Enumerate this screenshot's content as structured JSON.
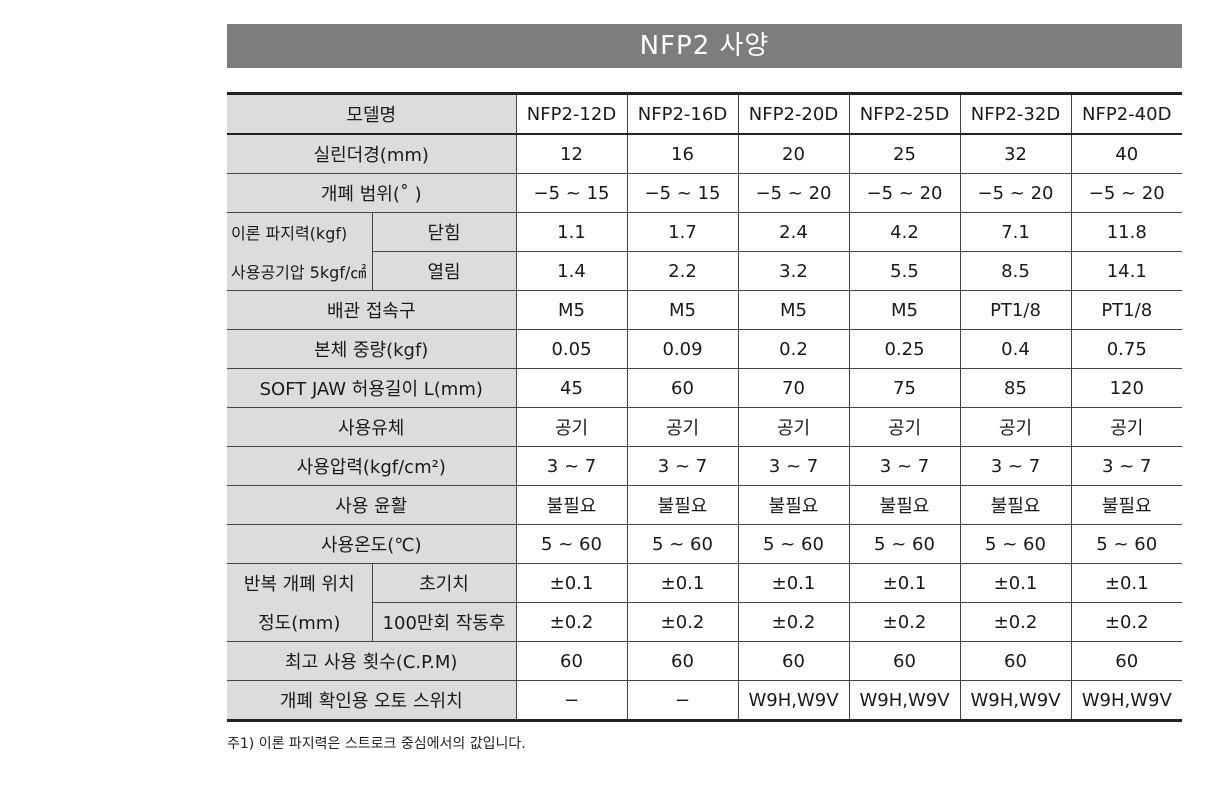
{
  "title": "NFP2 사양",
  "models": [
    "NFP2-12D",
    "NFP2-16D",
    "NFP2-20D",
    "NFP2-25D",
    "NFP2-32D",
    "NFP2-40D"
  ],
  "header_label": "모델명",
  "rows": {
    "bore": {
      "label": "실린더경(mm)",
      "values": [
        "12",
        "16",
        "20",
        "25",
        "32",
        "40"
      ]
    },
    "angle": {
      "label": "개폐 범위(˚ )",
      "values": [
        "−5 ~ 15",
        "−5 ~ 15",
        "−5 ~ 20",
        "−5 ~ 20",
        "−5 ~ 20",
        "−5 ~ 20"
      ]
    },
    "force_label_1": "이론 파지력(kgf)",
    "force_label_2": "사용공기압 5kgf/㎠",
    "close": {
      "label": "닫힘",
      "values": [
        "1.1",
        "1.7",
        "2.4",
        "4.2",
        "7.1",
        "11.8"
      ]
    },
    "open": {
      "label": "열림",
      "values": [
        "1.4",
        "2.2",
        "3.2",
        "5.5",
        "8.5",
        "14.1"
      ]
    },
    "port": {
      "label": "배관 접속구",
      "values": [
        "M5",
        "M5",
        "M5",
        "M5",
        "PT1/8",
        "PT1/8"
      ]
    },
    "weight": {
      "label": "본체 중량(kgf)",
      "values": [
        "0.05",
        "0.09",
        "0.2",
        "0.25",
        "0.4",
        "0.75"
      ]
    },
    "jaw": {
      "label": "SOFT JAW 허용길이 L(mm)",
      "values": [
        "45",
        "60",
        "70",
        "75",
        "85",
        "120"
      ]
    },
    "fluid": {
      "label": "사용유체",
      "values": [
        "공기",
        "공기",
        "공기",
        "공기",
        "공기",
        "공기"
      ]
    },
    "pressure": {
      "label": "사용압력(kgf/cm²)",
      "values": [
        "3 ~ 7",
        "3 ~ 7",
        "3 ~ 7",
        "3 ~ 7",
        "3 ~ 7",
        "3 ~ 7"
      ]
    },
    "lube": {
      "label": "사용 윤활",
      "values": [
        "불필요",
        "불필요",
        "불필요",
        "불필요",
        "불필요",
        "불필요"
      ]
    },
    "temp": {
      "label": "사용온도(℃)",
      "values": [
        "5 ~ 60",
        "5 ~ 60",
        "5 ~ 60",
        "5 ~ 60",
        "5 ~ 60",
        "5 ~ 60"
      ]
    },
    "repeat_label_1": "반복 개폐 위치",
    "repeat_label_2": "정도(mm)",
    "initial": {
      "label": "초기치",
      "values": [
        "±0.1",
        "±0.1",
        "±0.1",
        "±0.1",
        "±0.1",
        "±0.1"
      ]
    },
    "after": {
      "label": "100만회 작동후",
      "values": [
        "±0.2",
        "±0.2",
        "±0.2",
        "±0.2",
        "±0.2",
        "±0.2"
      ]
    },
    "cpm": {
      "label": "최고 사용 횟수(C.P.M)",
      "values": [
        "60",
        "60",
        "60",
        "60",
        "60",
        "60"
      ]
    },
    "switch": {
      "label": "개폐 확인용 오토 스위치",
      "values": [
        "−",
        "−",
        "W9H,W9V",
        "W9H,W9V",
        "W9H,W9V",
        "W9H,W9V"
      ]
    }
  },
  "note": "주1) 이론 파지력은 스트로크 중심에서의 값입니다."
}
